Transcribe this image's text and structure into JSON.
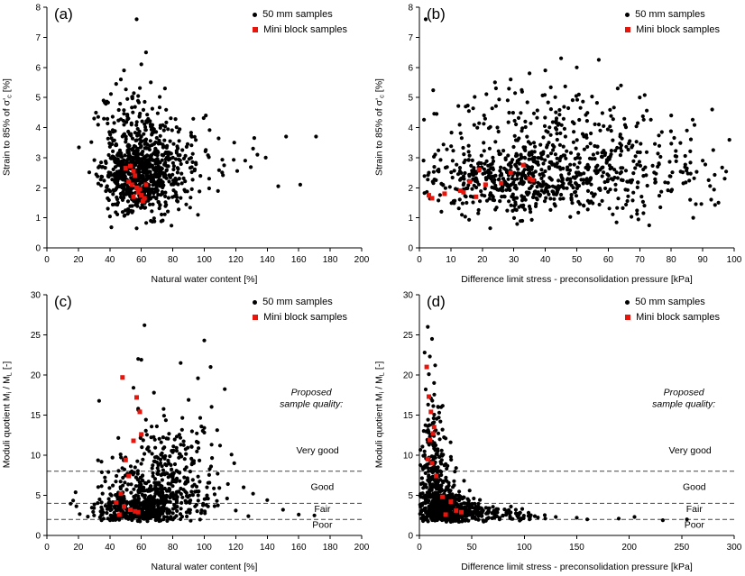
{
  "colors": {
    "dot": "#000000",
    "mini": "#e8150d",
    "axis": "#000000",
    "threshold": "#444444"
  },
  "legend": {
    "fifty": "50 mm samples",
    "mini": "Mini block samples"
  },
  "chart_data": [
    {
      "type": "scatter",
      "letter": "(a)",
      "xlabel": "Natural water content [%]",
      "ylabel": {
        "p1": "Strain to 85% of σ'",
        "s1": "c",
        "p2": " [%]"
      },
      "xlim": [
        0,
        200
      ],
      "ylim": [
        0,
        8
      ],
      "xticks": [
        0,
        20,
        40,
        60,
        80,
        100,
        120,
        140,
        160,
        180,
        200
      ],
      "yticks": [
        0,
        1,
        2,
        3,
        4,
        5,
        6,
        7,
        8
      ],
      "yclip": [
        0.55,
        5.45
      ],
      "clusters": [
        {
          "n": 420,
          "cx": 55,
          "cy": 2.45,
          "sx": 10,
          "sy": 0.62,
          "seed": 11
        },
        {
          "n": 220,
          "cx": 67,
          "cy": 2.25,
          "sx": 13,
          "sy": 0.55,
          "seed": 12
        },
        {
          "n": 150,
          "cx": 62,
          "cy": 3.3,
          "sx": 16,
          "sy": 0.75,
          "seed": 13
        },
        {
          "n": 60,
          "cx": 52,
          "cy": 4.3,
          "sx": 9,
          "sy": 0.55,
          "seed": 14
        },
        {
          "n": 25,
          "cx": 90,
          "cy": 2.8,
          "sx": 14,
          "sy": 0.7,
          "seed": 15
        },
        {
          "n": 10,
          "cx": 115,
          "cy": 2.9,
          "sx": 10,
          "sy": 0.6,
          "seed": 16
        }
      ],
      "outliers": [
        [
          57,
          7.6
        ],
        [
          63,
          6.5
        ],
        [
          60,
          6.1
        ],
        [
          49,
          5.9
        ],
        [
          47,
          5.6
        ],
        [
          44,
          5.45
        ],
        [
          75,
          5.3
        ],
        [
          58,
          5.05
        ],
        [
          66,
          5.5
        ],
        [
          139,
          3.0
        ],
        [
          152,
          3.7
        ],
        [
          161,
          2.1
        ],
        [
          171,
          3.7
        ],
        [
          131,
          3.3
        ],
        [
          147,
          2.05
        ],
        [
          126,
          2.9
        ],
        [
          119,
          3.5
        ],
        [
          36,
          4.9
        ],
        [
          101,
          4.4
        ],
        [
          96,
          1.1
        ],
        [
          57,
          0.65
        ],
        [
          66,
          0.9
        ]
      ],
      "mini_points": [
        [
          50,
          2.65
        ],
        [
          53,
          2.72
        ],
        [
          55,
          2.55
        ],
        [
          56,
          2.4
        ],
        [
          52,
          2.2
        ],
        [
          54,
          2.1
        ],
        [
          57,
          2.0
        ],
        [
          58,
          1.85
        ],
        [
          60,
          1.75
        ],
        [
          62,
          1.65
        ],
        [
          61,
          1.55
        ],
        [
          59,
          1.95
        ],
        [
          63,
          2.1
        ],
        [
          55,
          1.7
        ]
      ]
    },
    {
      "type": "scatter",
      "letter": "(b)",
      "xlabel": "Difference limit stress - preconsolidation pressure [kPa]",
      "ylabel": {
        "p1": "Strain to 85% of σ'",
        "s1": "c",
        "p2": " [%]"
      },
      "xlim": [
        0,
        100
      ],
      "ylim": [
        0,
        8
      ],
      "xticks": [
        0,
        10,
        20,
        30,
        40,
        50,
        60,
        70,
        80,
        90,
        100
      ],
      "yticks": [
        0,
        1,
        2,
        3,
        4,
        5,
        6,
        7,
        8
      ],
      "yclip": [
        0.55,
        5.45
      ],
      "clusters": [
        {
          "n": 380,
          "cx": 28,
          "cy": 2.2,
          "sx": 14,
          "sy": 0.55,
          "seed": 21
        },
        {
          "n": 260,
          "cx": 52,
          "cy": 2.45,
          "sx": 18,
          "sy": 0.65,
          "seed": 22
        },
        {
          "n": 170,
          "cx": 42,
          "cy": 3.3,
          "sx": 20,
          "sy": 0.8,
          "seed": 23
        },
        {
          "n": 70,
          "cx": 38,
          "cy": 4.6,
          "sx": 18,
          "sy": 0.6,
          "seed": 24
        },
        {
          "n": 40,
          "cx": 80,
          "cy": 2.6,
          "sx": 10,
          "sy": 0.8,
          "seed": 25
        }
      ],
      "outliers": [
        [
          2,
          7.6
        ],
        [
          45,
          6.3
        ],
        [
          57,
          6.25
        ],
        [
          40,
          5.9
        ],
        [
          29,
          5.6
        ],
        [
          24,
          5.5
        ],
        [
          63,
          5.3
        ],
        [
          70,
          5.0
        ],
        [
          93,
          4.6
        ],
        [
          90,
          2.9
        ],
        [
          97,
          2.3
        ],
        [
          95,
          1.5
        ],
        [
          87,
          1.0
        ],
        [
          73,
          0.75
        ],
        [
          50,
          6.0
        ],
        [
          35,
          5.8
        ],
        [
          80,
          4.4
        ],
        [
          85,
          3.9
        ],
        [
          5,
          3.1
        ],
        [
          3,
          2.5
        ],
        [
          7,
          1.2
        ]
      ],
      "mini_points": [
        [
          3,
          1.75
        ],
        [
          4,
          1.65
        ],
        [
          8,
          1.8
        ],
        [
          13,
          1.9
        ],
        [
          16,
          2.2
        ],
        [
          19,
          2.6
        ],
        [
          21,
          2.1
        ],
        [
          26,
          2.15
        ],
        [
          33,
          2.75
        ],
        [
          35,
          2.3
        ],
        [
          36,
          2.25
        ],
        [
          14,
          1.85
        ],
        [
          18,
          1.7
        ],
        [
          29,
          2.5
        ]
      ]
    },
    {
      "type": "scatter",
      "letter": "(c)",
      "xlabel": "Natural water content [%]",
      "ylabel": {
        "p1": "Moduli quotient M",
        "s1": "i",
        "p2": " / M",
        "s2": "L",
        "p3": " [-]"
      },
      "xlim": [
        0,
        200
      ],
      "ylim": [
        0,
        30
      ],
      "xticks": [
        0,
        20,
        40,
        60,
        80,
        100,
        120,
        140,
        160,
        180,
        200
      ],
      "yticks": [
        0,
        5,
        10,
        15,
        20,
        25,
        30
      ],
      "yclip": [
        1.75,
        22.5
      ],
      "thresholds": [
        8,
        4,
        2
      ],
      "quality_note": {
        "x": 168,
        "y": 17.5,
        "lines": [
          "Proposed",
          "sample quality:"
        ]
      },
      "quality_labels": [
        {
          "t": "Very good",
          "x": 172,
          "y": 10.2
        },
        {
          "t": "Good",
          "x": 175,
          "y": 5.7
        },
        {
          "t": "Fair",
          "x": 175,
          "y": 2.9
        },
        {
          "t": "Poor",
          "x": 175,
          "y": 0.95
        }
      ],
      "clusters": [
        {
          "n": 380,
          "cx": 58,
          "cy": 3.1,
          "sx": 13,
          "sy": 1.1,
          "seed": 31
        },
        {
          "n": 240,
          "cx": 72,
          "cy": 4.6,
          "sx": 17,
          "sy": 1.7,
          "seed": 32
        },
        {
          "n": 130,
          "cx": 70,
          "cy": 7.8,
          "sx": 17,
          "sy": 2.0,
          "seed": 33
        },
        {
          "n": 60,
          "cx": 72,
          "cy": 12,
          "sx": 16,
          "sy": 2.6,
          "seed": 34
        },
        {
          "n": 25,
          "cx": 95,
          "cy": 9,
          "sx": 10,
          "sy": 3,
          "seed": 35
        }
      ],
      "outliers": [
        [
          62,
          26.2
        ],
        [
          100,
          24.3
        ],
        [
          58,
          22.0
        ],
        [
          85,
          21.5
        ],
        [
          104,
          21.0
        ],
        [
          96,
          19.6
        ],
        [
          119,
          9.0
        ],
        [
          125,
          6.0
        ],
        [
          131,
          5.2
        ],
        [
          140,
          4.4
        ],
        [
          150,
          3.2
        ],
        [
          160,
          2.6
        ],
        [
          170,
          2.5
        ],
        [
          60,
          21.9
        ],
        [
          55,
          18.4
        ],
        [
          68,
          17.8
        ],
        [
          90,
          16.9
        ],
        [
          100,
          13.4
        ],
        [
          110,
          11.2
        ],
        [
          115,
          6.4
        ],
        [
          120,
          3.1
        ],
        [
          128,
          2.4
        ],
        [
          36,
          2.1
        ],
        [
          30,
          2.5
        ],
        [
          108,
          4.3
        ]
      ],
      "mini_points": [
        [
          48,
          19.7
        ],
        [
          57,
          17.2
        ],
        [
          59,
          15.4
        ],
        [
          60,
          12.6
        ],
        [
          55,
          11.8
        ],
        [
          50,
          9.4
        ],
        [
          52,
          7.4
        ],
        [
          47,
          5.2
        ],
        [
          44,
          4.1
        ],
        [
          49,
          3.6
        ],
        [
          53,
          3.2
        ],
        [
          56,
          3.0
        ],
        [
          46,
          2.6
        ],
        [
          58,
          2.9
        ]
      ]
    },
    {
      "type": "scatter",
      "letter": "(d)",
      "xlabel": "Difference limit stress - preconsolidation pressure [kPa]",
      "ylabel": {
        "p1": "Moduli quotient M",
        "s1": "i",
        "p2": " / M",
        "s2": "L",
        "p3": " [-]"
      },
      "xlim": [
        0,
        300
      ],
      "ylim": [
        0,
        30
      ],
      "xticks": [
        0,
        50,
        100,
        150,
        200,
        250,
        300
      ],
      "yticks": [
        0,
        5,
        10,
        15,
        20,
        25,
        30
      ],
      "yclip": [
        1.7,
        23
      ],
      "thresholds": [
        8,
        4,
        2
      ],
      "quality_note": {
        "x": 252,
        "y": 17.5,
        "lines": [
          "Proposed",
          "sample quality:"
        ]
      },
      "quality_labels": [
        {
          "t": "Very good",
          "x": 258,
          "y": 10.2
        },
        {
          "t": "Good",
          "x": 262,
          "y": 5.7
        },
        {
          "t": "Fair",
          "x": 262,
          "y": 2.9
        },
        {
          "t": "Poor",
          "x": 262,
          "y": 0.95
        }
      ],
      "clusters": [
        {
          "n": 300,
          "cx": 18,
          "cy": 4.2,
          "sx": 10,
          "sy": 1.6,
          "seed": 41
        },
        {
          "n": 220,
          "cx": 32,
          "cy": 3.0,
          "sx": 14,
          "sy": 0.9,
          "seed": 42
        },
        {
          "n": 120,
          "cx": 14,
          "cy": 7.5,
          "sx": 7,
          "sy": 2.2,
          "seed": 43
        },
        {
          "n": 60,
          "cx": 12,
          "cy": 12,
          "sx": 6,
          "sy": 3,
          "seed": 44
        },
        {
          "n": 90,
          "cx": 60,
          "cy": 2.7,
          "sx": 18,
          "sy": 0.5,
          "seed": 45
        },
        {
          "n": 25,
          "cx": 95,
          "cy": 2.4,
          "sx": 12,
          "sy": 0.35,
          "seed": 46
        }
      ],
      "outliers": [
        [
          8,
          26.0
        ],
        [
          12,
          24.5
        ],
        [
          5,
          22.8
        ],
        [
          10,
          22.3
        ],
        [
          15,
          21.2
        ],
        [
          9,
          20.1
        ],
        [
          14,
          19.0
        ],
        [
          6,
          18.2
        ],
        [
          11,
          17.1
        ],
        [
          18,
          16.0
        ],
        [
          20,
          14.2
        ],
        [
          25,
          12.1
        ],
        [
          30,
          9.8
        ],
        [
          35,
          8.4
        ],
        [
          190,
          2.1
        ],
        [
          205,
          2.3
        ],
        [
          255,
          2.0
        ],
        [
          232,
          1.9
        ],
        [
          150,
          2.2
        ],
        [
          160,
          2.0
        ],
        [
          120,
          2.1
        ],
        [
          130,
          2.3
        ],
        [
          110,
          2.4
        ],
        [
          98,
          3.3
        ],
        [
          105,
          2.0
        ]
      ],
      "mini_points": [
        [
          7,
          21.0
        ],
        [
          9,
          17.3
        ],
        [
          11,
          15.4
        ],
        [
          13,
          12.7
        ],
        [
          10,
          11.9
        ],
        [
          8,
          9.5
        ],
        [
          12,
          9.0
        ],
        [
          16,
          7.4
        ],
        [
          14,
          13.5
        ],
        [
          22,
          4.8
        ],
        [
          30,
          4.2
        ],
        [
          35,
          3.1
        ],
        [
          40,
          2.9
        ],
        [
          25,
          2.6
        ]
      ]
    }
  ]
}
